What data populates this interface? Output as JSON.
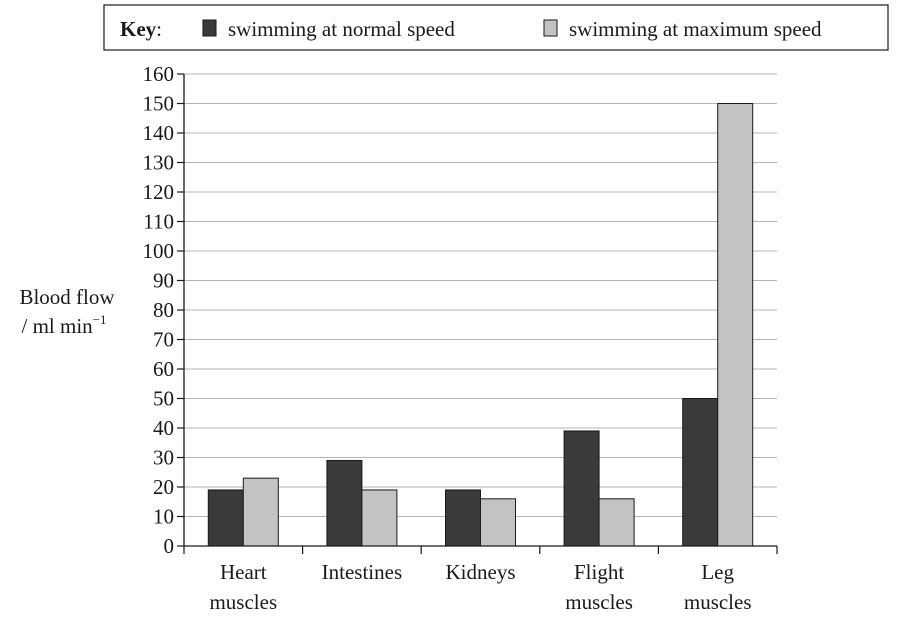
{
  "chart_data": {
    "type": "bar",
    "title": "",
    "legend": {
      "title": "Key",
      "placement": "top"
    },
    "xlabel": "",
    "ylabel": {
      "line1": "Blood flow",
      "line2": "/ ml min",
      "superscript": "−1"
    },
    "ylim": [
      0,
      160
    ],
    "yticks": [
      0,
      10,
      20,
      30,
      40,
      50,
      60,
      70,
      80,
      90,
      100,
      110,
      120,
      130,
      140,
      150,
      160
    ],
    "grid": true,
    "categories": [
      [
        "Heart",
        "muscles"
      ],
      [
        "Intestines"
      ],
      [
        "Kidneys"
      ],
      [
        "Flight",
        "muscles"
      ],
      [
        "Leg",
        "muscles"
      ]
    ],
    "series": [
      {
        "name": "swimming at normal speed",
        "color": "#3a3a3c",
        "values": [
          19,
          29,
          19,
          39,
          50
        ]
      },
      {
        "name": "swimming at maximum speed",
        "color": "#c2c3c5",
        "values": [
          23,
          19,
          16,
          16,
          150
        ]
      }
    ]
  }
}
